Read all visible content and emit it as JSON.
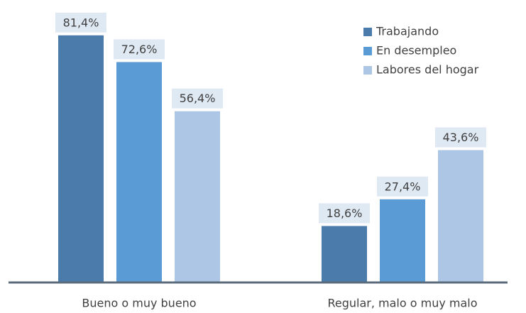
{
  "chart_data": {
    "type": "bar",
    "categories": [
      "Bueno o muy bueno",
      "Regular, malo o muy malo"
    ],
    "series": [
      {
        "name": "Trabajando",
        "color": "#4a7bab",
        "values": [
          81.4,
          18.6
        ],
        "value_labels": [
          "81,4%",
          "18,6%"
        ]
      },
      {
        "name": "En desempleo",
        "color": "#5b9bd5",
        "values": [
          72.6,
          27.4
        ],
        "value_labels": [
          "72,6%",
          "27,4%"
        ]
      },
      {
        "name": "Labores del hogar",
        "color": "#adc6e6",
        "values": [
          56.4,
          43.6
        ],
        "value_labels": [
          "56,4%",
          "43,6%"
        ]
      }
    ],
    "ylim": [
      0,
      90
    ],
    "legend": "top-right"
  }
}
